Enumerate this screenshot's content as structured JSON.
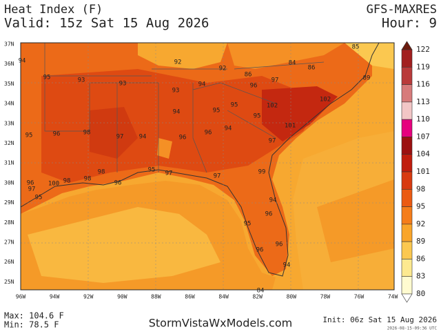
{
  "header": {
    "title": "Heat Index (F)",
    "valid": "Valid: 15z Sat 15 Aug 2026",
    "model": "GFS-MAXRES",
    "hour": "Hour: 9"
  },
  "map": {
    "lat_labels": [
      "37N",
      "36N",
      "35N",
      "34N",
      "33N",
      "32N",
      "31N",
      "30N",
      "29N",
      "28N",
      "27N",
      "26N",
      "25N"
    ],
    "lon_labels": [
      "96W",
      "94W",
      "92W",
      "90W",
      "88W",
      "86W",
      "84W",
      "82W",
      "80W",
      "78W",
      "76W",
      "74W"
    ],
    "values": [
      94,
      95,
      93,
      93,
      92,
      92,
      86,
      84,
      86,
      89,
      93,
      94,
      96,
      97,
      102,
      102,
      95,
      94,
      95,
      95,
      101,
      94,
      95,
      96,
      98,
      97,
      94,
      96,
      96,
      97,
      98,
      95,
      97,
      97,
      99,
      96,
      100,
      98,
      98,
      96,
      97,
      95,
      94,
      96,
      95,
      96,
      96,
      94,
      84,
      85
    ]
  },
  "colorbar": {
    "ticks": [
      122,
      119,
      116,
      113,
      110,
      107,
      104,
      101,
      98,
      95,
      92,
      89,
      86,
      83,
      80
    ]
  },
  "footer": {
    "max": "Max: 104.6 F",
    "min": "Min: 78.5 F",
    "site": "StormVistaWxModels.com",
    "init": "Init: 06z Sat 15 Aug 2026",
    "timestamp": "2026-08-15-09:36 UTC"
  }
}
